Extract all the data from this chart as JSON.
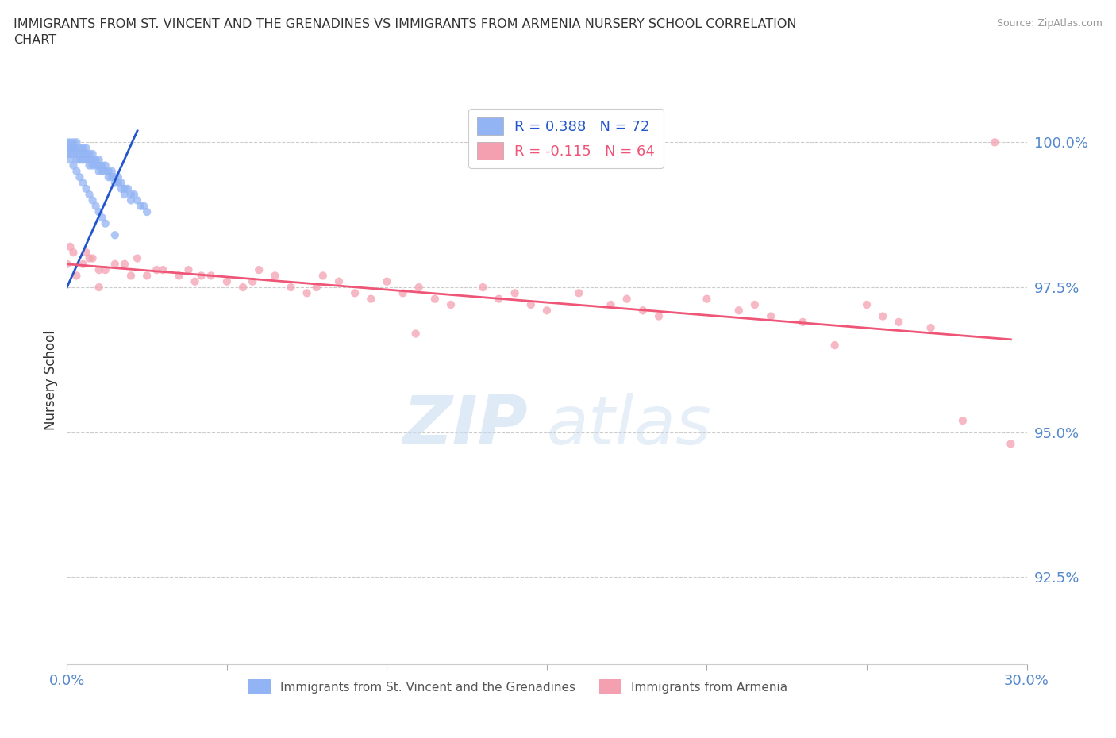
{
  "title": "IMMIGRANTS FROM ST. VINCENT AND THE GRENADINES VS IMMIGRANTS FROM ARMENIA NURSERY SCHOOL CORRELATION\nCHART",
  "source_text": "Source: ZipAtlas.com",
  "ylabel": "Nursery School",
  "xlim": [
    0.0,
    0.3
  ],
  "ylim": [
    0.91,
    1.008
  ],
  "yticks": [
    0.925,
    0.95,
    0.975,
    1.0
  ],
  "ytick_labels": [
    "92.5%",
    "95.0%",
    "97.5%",
    "100.0%"
  ],
  "xticks": [
    0.0,
    0.05,
    0.1,
    0.15,
    0.2,
    0.25,
    0.3
  ],
  "xtick_labels": [
    "0.0%",
    "",
    "",
    "",
    "",
    "",
    "30.0%"
  ],
  "color_blue": "#92B4F4",
  "color_pink": "#F4A0B0",
  "trend_blue": "#2255CC",
  "trend_pink": "#EE5577",
  "legend_r1": "R = 0.388   N = 72",
  "legend_r2": "R = -0.115   N = 64",
  "watermark_zip": "ZIP",
  "watermark_atlas": "atlas",
  "background_color": "#FFFFFF",
  "grid_color": "#CCCCCC",
  "axis_label_color": "#5588CC",
  "sv_x": [
    0.0,
    0.0,
    0.001,
    0.001,
    0.001,
    0.001,
    0.002,
    0.002,
    0.002,
    0.002,
    0.003,
    0.003,
    0.003,
    0.003,
    0.004,
    0.004,
    0.004,
    0.005,
    0.005,
    0.005,
    0.006,
    0.006,
    0.006,
    0.007,
    0.007,
    0.007,
    0.008,
    0.008,
    0.008,
    0.009,
    0.009,
    0.01,
    0.01,
    0.01,
    0.011,
    0.011,
    0.012,
    0.012,
    0.013,
    0.013,
    0.014,
    0.014,
    0.015,
    0.015,
    0.016,
    0.016,
    0.017,
    0.017,
    0.018,
    0.018,
    0.019,
    0.02,
    0.02,
    0.021,
    0.022,
    0.023,
    0.024,
    0.025,
    0.0,
    0.001,
    0.002,
    0.003,
    0.004,
    0.005,
    0.006,
    0.007,
    0.008,
    0.009,
    0.01,
    0.011,
    0.012,
    0.015
  ],
  "sv_y": [
    1.0,
    0.999,
    1.0,
    0.999,
    0.999,
    0.998,
    1.0,
    0.999,
    0.999,
    0.998,
    1.0,
    0.999,
    0.998,
    0.997,
    0.999,
    0.998,
    0.997,
    0.999,
    0.998,
    0.997,
    0.999,
    0.998,
    0.997,
    0.998,
    0.997,
    0.996,
    0.998,
    0.997,
    0.996,
    0.997,
    0.996,
    0.997,
    0.996,
    0.995,
    0.996,
    0.995,
    0.996,
    0.995,
    0.995,
    0.994,
    0.995,
    0.994,
    0.994,
    0.993,
    0.994,
    0.993,
    0.993,
    0.992,
    0.992,
    0.991,
    0.992,
    0.991,
    0.99,
    0.991,
    0.99,
    0.989,
    0.989,
    0.988,
    0.998,
    0.997,
    0.996,
    0.995,
    0.994,
    0.993,
    0.992,
    0.991,
    0.99,
    0.989,
    0.988,
    0.987,
    0.986,
    0.984
  ],
  "arm_x": [
    0.0,
    0.003,
    0.01,
    0.02,
    0.03,
    0.045,
    0.06,
    0.08,
    0.1,
    0.13,
    0.16,
    0.2,
    0.25,
    0.29,
    0.005,
    0.012,
    0.025,
    0.04,
    0.055,
    0.075,
    0.095,
    0.12,
    0.15,
    0.185,
    0.23,
    0.27,
    0.007,
    0.018,
    0.035,
    0.05,
    0.07,
    0.09,
    0.115,
    0.145,
    0.18,
    0.22,
    0.26,
    0.002,
    0.008,
    0.015,
    0.028,
    0.042,
    0.058,
    0.078,
    0.105,
    0.135,
    0.17,
    0.21,
    0.255,
    0.001,
    0.006,
    0.022,
    0.038,
    0.065,
    0.085,
    0.11,
    0.14,
    0.175,
    0.215,
    0.109,
    0.24,
    0.28,
    0.295,
    0.01
  ],
  "arm_y": [
    0.979,
    0.977,
    0.978,
    0.977,
    0.978,
    0.977,
    0.978,
    0.977,
    0.976,
    0.975,
    0.974,
    0.973,
    0.972,
    1.0,
    0.979,
    0.978,
    0.977,
    0.976,
    0.975,
    0.974,
    0.973,
    0.972,
    0.971,
    0.97,
    0.969,
    0.968,
    0.98,
    0.979,
    0.977,
    0.976,
    0.975,
    0.974,
    0.973,
    0.972,
    0.971,
    0.97,
    0.969,
    0.981,
    0.98,
    0.979,
    0.978,
    0.977,
    0.976,
    0.975,
    0.974,
    0.973,
    0.972,
    0.971,
    0.97,
    0.982,
    0.981,
    0.98,
    0.978,
    0.977,
    0.976,
    0.975,
    0.974,
    0.973,
    0.972,
    0.967,
    0.965,
    0.952,
    0.948,
    0.975
  ],
  "blue_trend_x": [
    0.0,
    0.022
  ],
  "blue_trend_y": [
    0.975,
    1.002
  ],
  "pink_trend_x": [
    0.0,
    0.295
  ],
  "pink_trend_y": [
    0.979,
    0.966
  ]
}
